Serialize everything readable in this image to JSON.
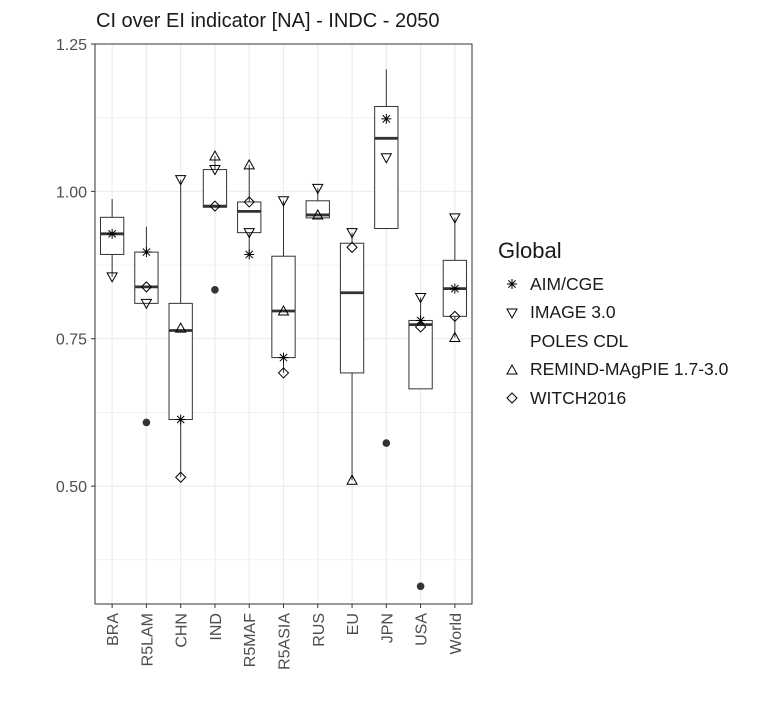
{
  "chart_data": {
    "type": "box",
    "title": "CI over EI indicator [NA] - INDC - 2050",
    "xlabel": "",
    "ylabel": "",
    "ylim": [
      0.3,
      1.25
    ],
    "yticks": [
      0.5,
      0.75,
      1.0,
      1.25
    ],
    "ytick_labels": [
      "0.50",
      "0.75",
      "1.00",
      "1.25"
    ],
    "grid": true,
    "legend_position": "right",
    "legend_title": "Global",
    "series": [
      {
        "name": "AIM/CGE",
        "marker": "asterisk"
      },
      {
        "name": "IMAGE 3.0",
        "marker": "triangle-down"
      },
      {
        "name": "POLES CDL",
        "marker": "none"
      },
      {
        "name": "REMIND-MAgPIE 1.7-3.0",
        "marker": "triangle-up"
      },
      {
        "name": "WITCH2016",
        "marker": "diamond"
      }
    ],
    "categories": [
      "BRA",
      "R5LAM",
      "CHN",
      "IND",
      "R5MAF",
      "R5ASIA",
      "RUS",
      "EU",
      "JPN",
      "USA",
      "World"
    ],
    "boxes": [
      {
        "category": "BRA",
        "whisker_low": 0.855,
        "q1": 0.893,
        "median": 0.928,
        "q3": 0.956,
        "whisker_high": 0.987
      },
      {
        "category": "R5LAM",
        "whisker_low": 0.81,
        "q1": 0.81,
        "median": 0.838,
        "q3": 0.897,
        "whisker_high": 0.94
      },
      {
        "category": "CHN",
        "whisker_low": 0.515,
        "q1": 0.613,
        "median": 0.764,
        "q3": 0.81,
        "whisker_high": 1.02
      },
      {
        "category": "IND",
        "whisker_low": 0.973,
        "q1": 0.973,
        "median": 0.975,
        "q3": 1.037,
        "whisker_high": 1.06
      },
      {
        "category": "R5MAF",
        "whisker_low": 0.893,
        "q1": 0.93,
        "median": 0.966,
        "q3": 0.982,
        "whisker_high": 1.045
      },
      {
        "category": "R5ASIA",
        "whisker_low": 0.692,
        "q1": 0.718,
        "median": 0.797,
        "q3": 0.89,
        "whisker_high": 0.984
      },
      {
        "category": "RUS",
        "whisker_low": 0.955,
        "q1": 0.955,
        "median": 0.96,
        "q3": 0.984,
        "whisker_high": 1.005
      },
      {
        "category": "EU",
        "whisker_low": 0.51,
        "q1": 0.692,
        "median": 0.828,
        "q3": 0.912,
        "whisker_high": 0.93
      },
      {
        "category": "JPN",
        "whisker_low": 0.937,
        "q1": 0.937,
        "median": 1.09,
        "q3": 1.144,
        "whisker_high": 1.207
      },
      {
        "category": "USA",
        "whisker_low": 0.665,
        "q1": 0.665,
        "median": 0.774,
        "q3": 0.781,
        "whisker_high": 0.82
      },
      {
        "category": "World",
        "whisker_low": 0.752,
        "q1": 0.788,
        "median": 0.835,
        "q3": 0.883,
        "whisker_high": 0.955
      }
    ],
    "points": [
      {
        "category": "BRA",
        "series": "AIM/CGE",
        "y": 0.928
      },
      {
        "category": "BRA",
        "series": "IMAGE 3.0",
        "y": 0.855
      },
      {
        "category": "R5LAM",
        "series": "AIM/CGE",
        "y": 0.897
      },
      {
        "category": "R5LAM",
        "series": "WITCH2016",
        "y": 0.838
      },
      {
        "category": "R5LAM",
        "series": "IMAGE 3.0",
        "y": 0.81
      },
      {
        "category": "CHN",
        "series": "IMAGE 3.0",
        "y": 1.02
      },
      {
        "category": "CHN",
        "series": "REMIND-MAgPIE 1.7-3.0",
        "y": 0.768
      },
      {
        "category": "CHN",
        "series": "AIM/CGE",
        "y": 0.613
      },
      {
        "category": "CHN",
        "series": "WITCH2016",
        "y": 0.515
      },
      {
        "category": "IND",
        "series": "REMIND-MAgPIE 1.7-3.0",
        "y": 1.06
      },
      {
        "category": "IND",
        "series": "IMAGE 3.0",
        "y": 1.037
      },
      {
        "category": "IND",
        "series": "WITCH2016",
        "y": 0.975
      },
      {
        "category": "R5MAF",
        "series": "REMIND-MAgPIE 1.7-3.0",
        "y": 1.045
      },
      {
        "category": "R5MAF",
        "series": "WITCH2016",
        "y": 0.982
      },
      {
        "category": "R5MAF",
        "series": "IMAGE 3.0",
        "y": 0.93
      },
      {
        "category": "R5MAF",
        "series": "AIM/CGE",
        "y": 0.893
      },
      {
        "category": "R5ASIA",
        "series": "IMAGE 3.0",
        "y": 0.984
      },
      {
        "category": "R5ASIA",
        "series": "REMIND-MAgPIE 1.7-3.0",
        "y": 0.797
      },
      {
        "category": "R5ASIA",
        "series": "AIM/CGE",
        "y": 0.718
      },
      {
        "category": "R5ASIA",
        "series": "WITCH2016",
        "y": 0.692
      },
      {
        "category": "RUS",
        "series": "IMAGE 3.0",
        "y": 1.005
      },
      {
        "category": "RUS",
        "series": "REMIND-MAgPIE 1.7-3.0",
        "y": 0.96
      },
      {
        "category": "EU",
        "series": "IMAGE 3.0",
        "y": 0.93
      },
      {
        "category": "EU",
        "series": "WITCH2016",
        "y": 0.905
      },
      {
        "category": "EU",
        "series": "REMIND-MAgPIE 1.7-3.0",
        "y": 0.51
      },
      {
        "category": "JPN",
        "series": "AIM/CGE",
        "y": 1.123
      },
      {
        "category": "JPN",
        "series": "IMAGE 3.0",
        "y": 1.057
      },
      {
        "category": "USA",
        "series": "IMAGE 3.0",
        "y": 0.82
      },
      {
        "category": "USA",
        "series": "AIM/CGE",
        "y": 0.781
      },
      {
        "category": "USA",
        "series": "WITCH2016",
        "y": 0.77
      },
      {
        "category": "World",
        "series": "IMAGE 3.0",
        "y": 0.955
      },
      {
        "category": "World",
        "series": "AIM/CGE",
        "y": 0.835
      },
      {
        "category": "World",
        "series": "WITCH2016",
        "y": 0.788
      },
      {
        "category": "World",
        "series": "REMIND-MAgPIE 1.7-3.0",
        "y": 0.752
      }
    ],
    "outliers": [
      {
        "category": "R5LAM",
        "y": 0.608
      },
      {
        "category": "IND",
        "y": 0.833
      },
      {
        "category": "JPN",
        "y": 0.573
      },
      {
        "category": "USA",
        "y": 0.33
      }
    ],
    "colors": {
      "panel": "#ffffff",
      "grid": "#ebebeb",
      "box": "#333333",
      "outlier": "#333333"
    }
  }
}
